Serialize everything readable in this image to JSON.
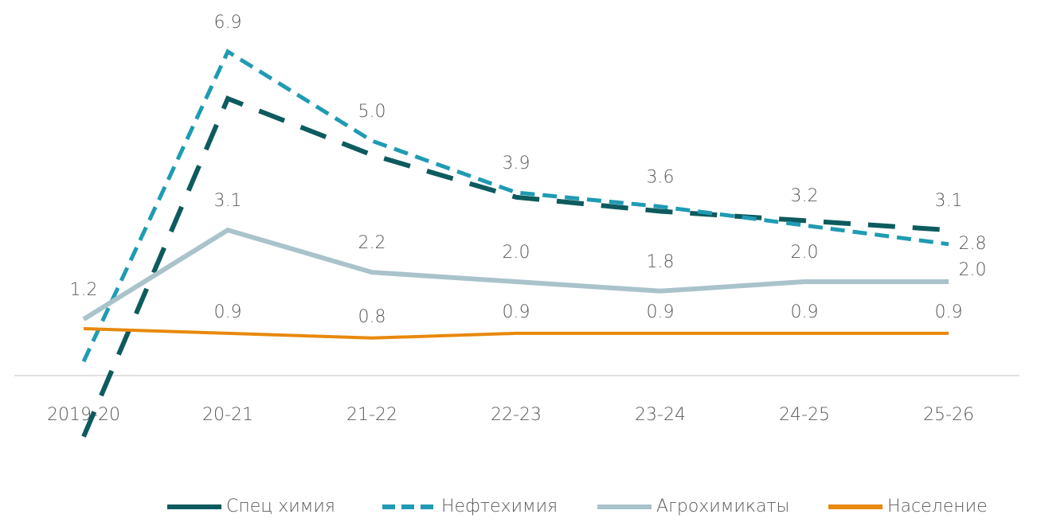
{
  "chart_data": {
    "type": "line",
    "categories": [
      "2019-20",
      "20-21",
      "21-22",
      "22-23",
      "23-24",
      "24-25",
      "25-26"
    ],
    "series": [
      {
        "name": "Спец химия",
        "color": "#0d5b5e",
        "dash": "long",
        "values": [
          -1.3,
          5.9,
          4.7,
          3.8,
          3.5,
          3.3,
          3.1
        ],
        "value_labels": [
          null,
          null,
          null,
          null,
          null,
          null,
          "3.1"
        ]
      },
      {
        "name": "Нефтехимия",
        "color": "#1f9bb3",
        "dash": "short",
        "values": [
          0.3,
          6.9,
          5.0,
          3.9,
          3.6,
          3.2,
          2.8
        ],
        "value_labels": [
          null,
          "6.9",
          "5.0",
          "3.9",
          "3.6",
          "3.2",
          "2.8"
        ]
      },
      {
        "name": "Агрохимикаты",
        "color": "#a9c3ca",
        "dash": "solid",
        "values": [
          1.2,
          3.1,
          2.2,
          2.0,
          1.8,
          2.0,
          2.0
        ],
        "value_labels": [
          "1.2",
          "3.1",
          "2.2",
          "2.0",
          "1.8",
          "2.0",
          "2.0"
        ]
      },
      {
        "name": "Население",
        "color": "#e8890c",
        "dash": "solid",
        "values": [
          1.0,
          0.9,
          0.8,
          0.9,
          0.9,
          0.9,
          0.9
        ],
        "value_labels": [
          null,
          "0.9",
          "0.8",
          "0.9",
          "0.9",
          "0.9",
          "0.9"
        ]
      }
    ],
    "ylim": [
      -1.5,
      7.5
    ],
    "legend": "bottom"
  }
}
